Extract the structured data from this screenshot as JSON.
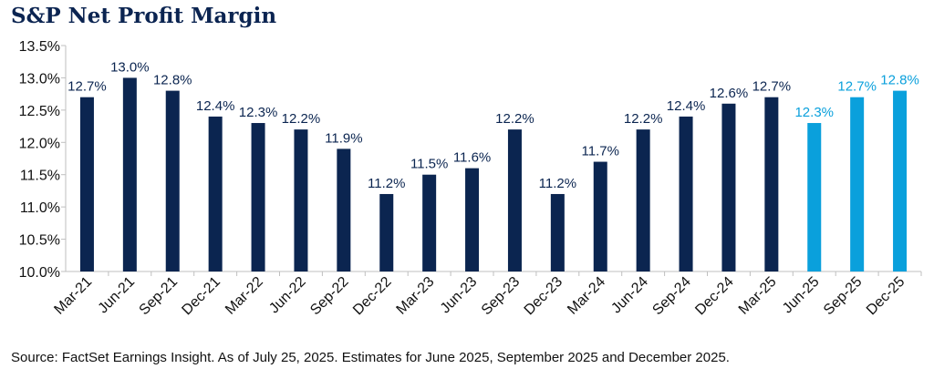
{
  "title": "S&P Net Profit Margin",
  "source": "Source: FactSet Earnings Insight. As of July 25, 2025. Estimates for June 2025, September 2025 and December 2025.",
  "colors": {
    "actual": "#0b2550",
    "estimate": "#0aa0dc",
    "title": "#0b2451",
    "axis": "#bfbfbf"
  },
  "chart_data": {
    "type": "bar",
    "title": "S&P Net Profit Margin",
    "xlabel": "",
    "ylabel": "",
    "ylim": [
      10.0,
      13.5
    ],
    "yticks": [
      "10.0%",
      "10.5%",
      "11.0%",
      "11.5%",
      "12.0%",
      "12.5%",
      "13.0%",
      "13.5%"
    ],
    "categories": [
      "Mar-21",
      "Jun-21",
      "Sep-21",
      "Dec-21",
      "Mar-22",
      "Jun-22",
      "Sep-22",
      "Dec-22",
      "Mar-23",
      "Jun-23",
      "Sep-23",
      "Dec-23",
      "Mar-24",
      "Jun-24",
      "Sep-24",
      "Dec-24",
      "Mar-25",
      "Jun-25",
      "Sep-25",
      "Dec-25"
    ],
    "values": [
      12.7,
      13.0,
      12.8,
      12.4,
      12.3,
      12.2,
      11.9,
      11.2,
      11.5,
      11.6,
      12.2,
      11.2,
      11.7,
      12.2,
      12.4,
      12.6,
      12.7,
      12.3,
      12.7,
      12.8
    ],
    "labels": [
      "12.7%",
      "13.0%",
      "12.8%",
      "12.4%",
      "12.3%",
      "12.2%",
      "11.9%",
      "11.2%",
      "11.5%",
      "11.6%",
      "12.2%",
      "11.2%",
      "11.7%",
      "12.2%",
      "12.4%",
      "12.6%",
      "12.7%",
      "12.3%",
      "12.7%",
      "12.8%"
    ],
    "estimate": [
      false,
      false,
      false,
      false,
      false,
      false,
      false,
      false,
      false,
      false,
      false,
      false,
      false,
      false,
      false,
      false,
      false,
      true,
      true,
      true
    ],
    "grid": false,
    "legend": "none"
  }
}
